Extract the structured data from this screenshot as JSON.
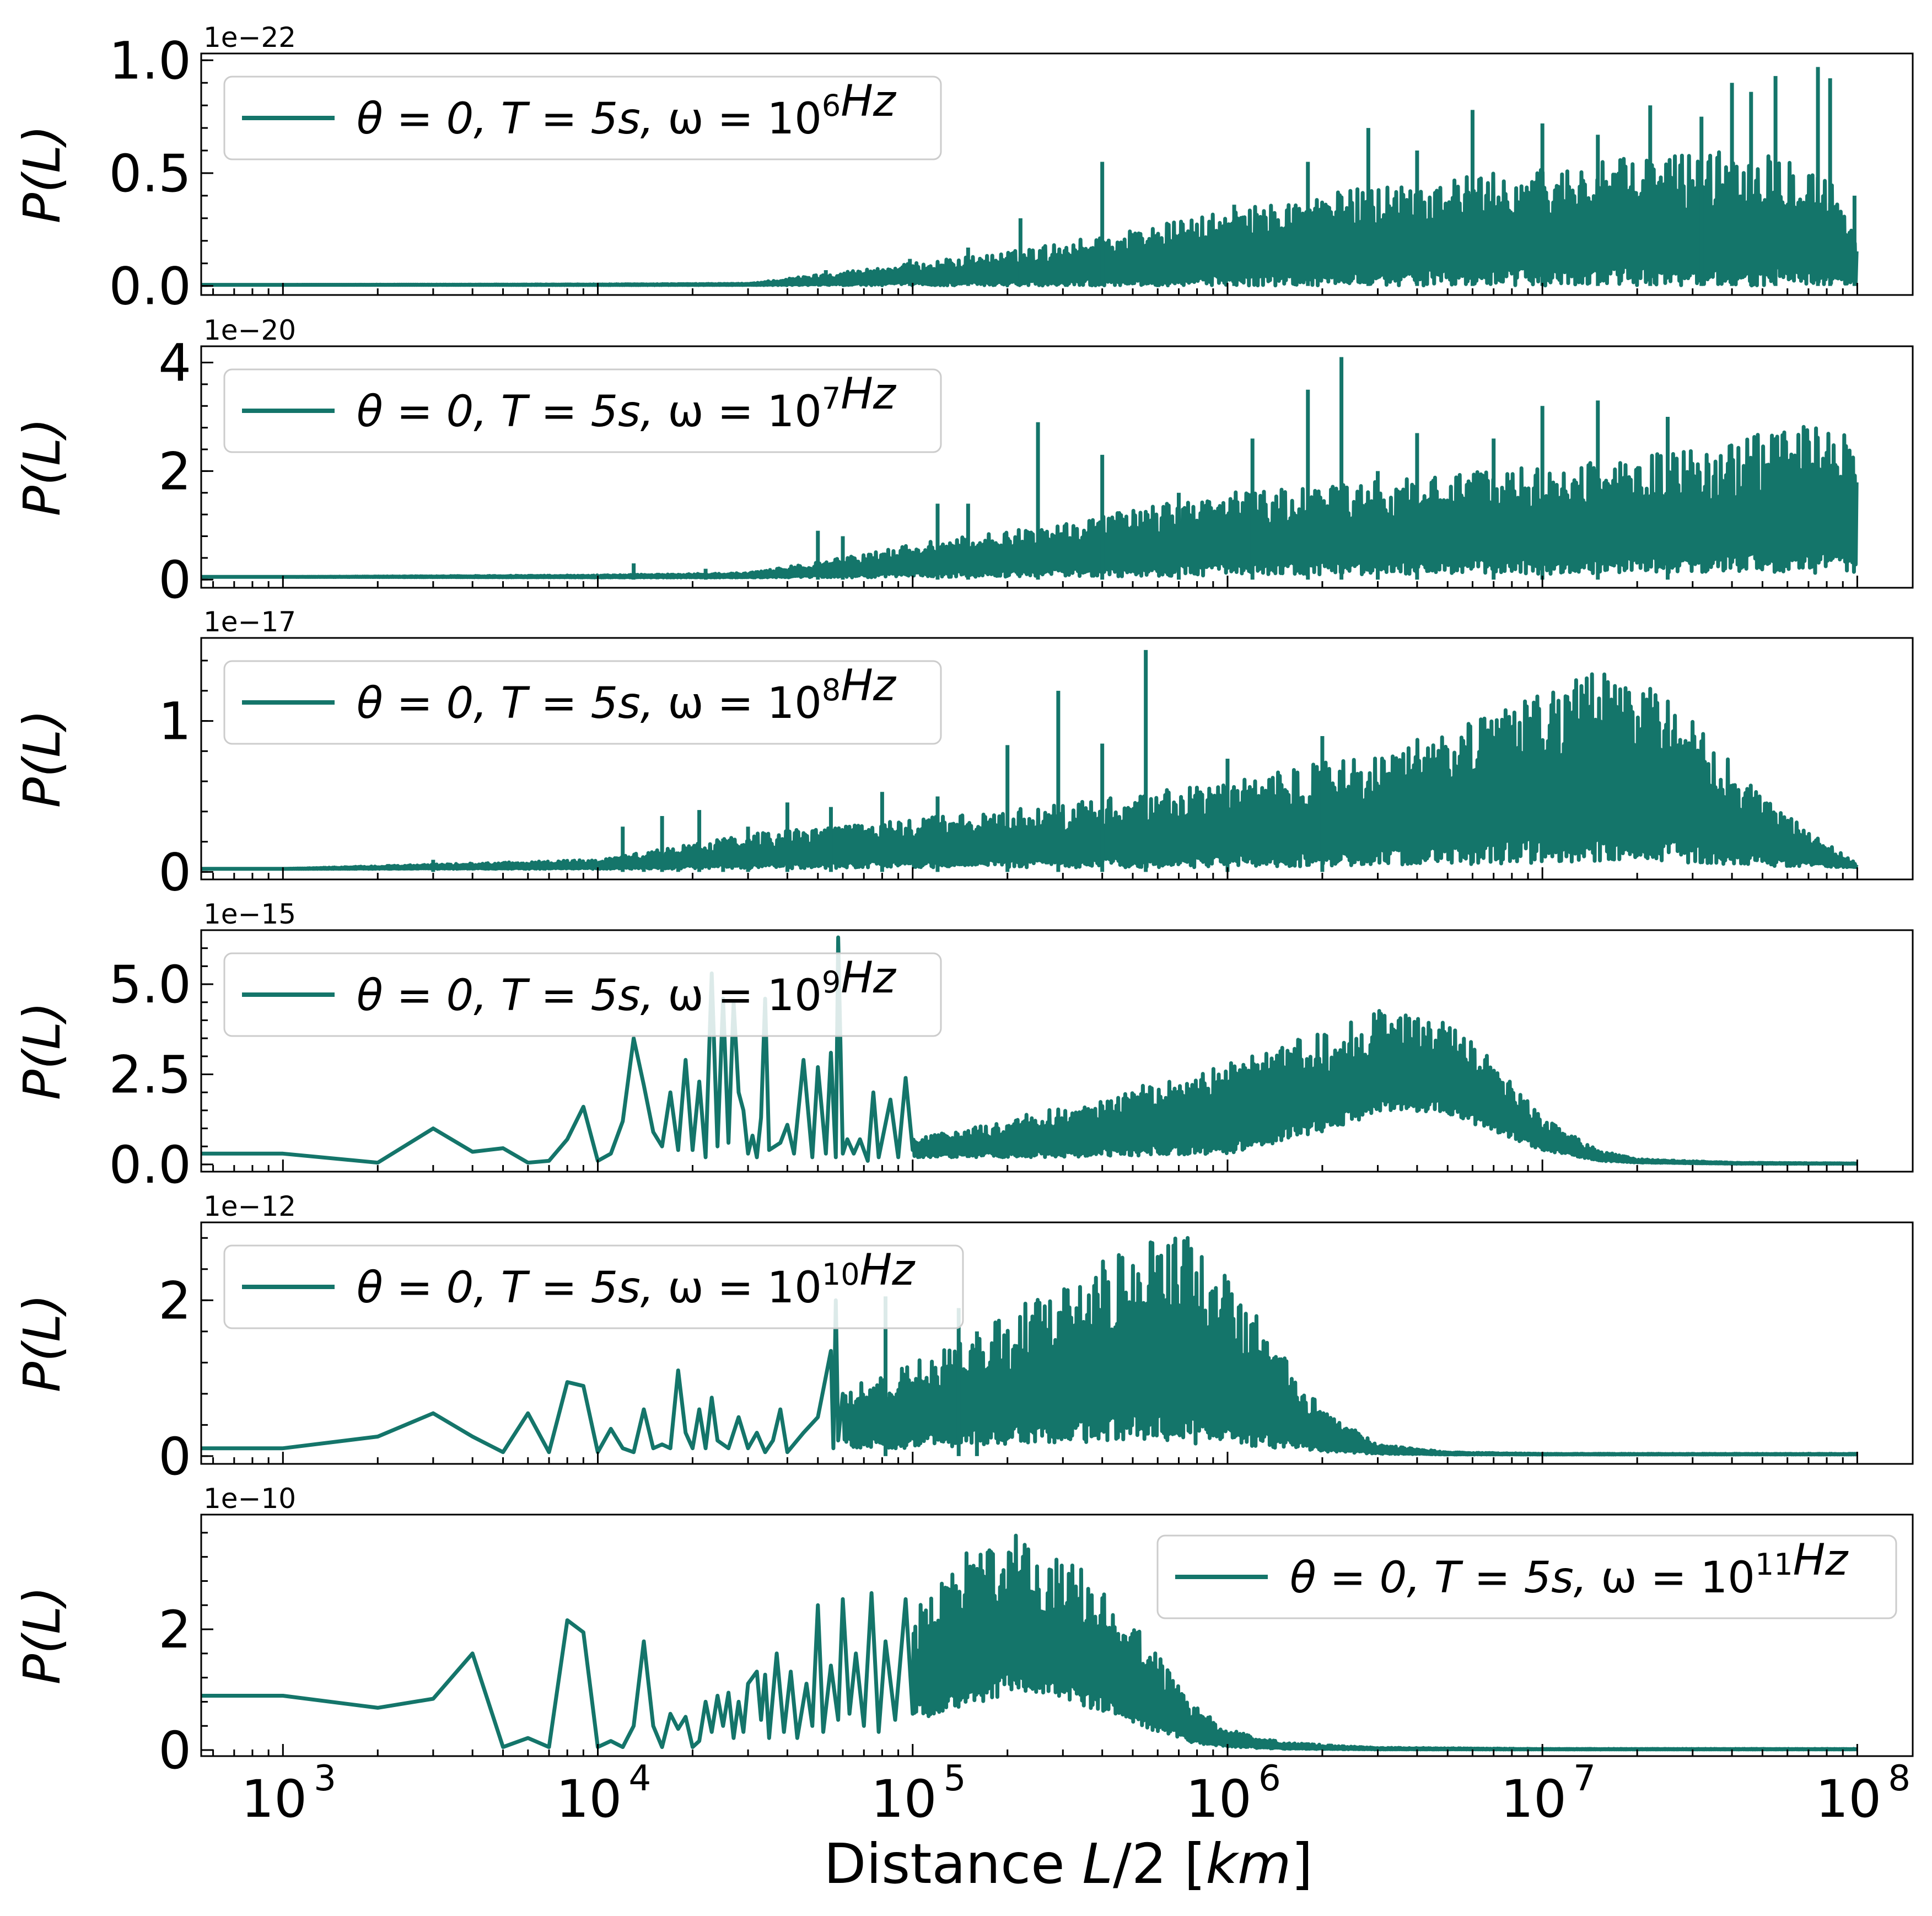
{
  "figure": {
    "color": "#14756a",
    "xlabel_prefix": "Distance ",
    "xlabel_var": "L",
    "xlabel_mid": "/2 [",
    "xlabel_unit": "km",
    "xlabel_suffix": "]"
  },
  "chart_data": [
    {
      "type": "line",
      "ylabel": "P(L)",
      "offset": "1e−22",
      "yticks": [
        0.0,
        0.5,
        1.0
      ],
      "ytick_labels": [
        "0.0",
        "0.5",
        "1.0"
      ],
      "ylim": [
        -0.04,
        1.03
      ],
      "xscale": "log",
      "xlim": [
        550,
        150000000
      ],
      "xticks_exp": [
        "3",
        "4",
        "5",
        "6",
        "7",
        "8"
      ],
      "legend": {
        "theta": "θ = 0, ",
        "T": "T = 5s, ",
        "omega": "ω = 10",
        "exp": "6",
        "unit": "Hz",
        "loc": "upper-left"
      },
      "envelope": {
        "x": [
          1000,
          10000,
          30000,
          50000,
          100000,
          200000,
          500000,
          1000000,
          3000000,
          10000000,
          30000000,
          60000000,
          80000000,
          100000000
        ],
        "upper": [
          0.005,
          0.007,
          0.01,
          0.05,
          0.1,
          0.15,
          0.25,
          0.33,
          0.45,
          0.52,
          0.6,
          0.6,
          0.5,
          0.25
        ],
        "lower": [
          0.005,
          0.004,
          0.004,
          0.003,
          0.003,
          0.002,
          0.002,
          0.002,
          0.002,
          0.002,
          0.002,
          0.002,
          0.002,
          0.002
        ]
      },
      "spikes": [
        [
          53000,
          0.07
        ],
        [
          98000,
          0.12
        ],
        [
          150000,
          0.17
        ],
        [
          220000,
          0.3
        ],
        [
          400000,
          0.55
        ],
        [
          1050000,
          0.36
        ],
        [
          1800000,
          0.55
        ],
        [
          2800000,
          0.7
        ],
        [
          4000000,
          0.6
        ],
        [
          6000000,
          0.78
        ],
        [
          10000000,
          0.72
        ],
        [
          15000000,
          0.67
        ],
        [
          22000000,
          0.8
        ],
        [
          32000000,
          0.75
        ],
        [
          40000000,
          0.9
        ],
        [
          46000000,
          0.86
        ],
        [
          55000000,
          0.93
        ],
        [
          75000000,
          0.97
        ],
        [
          82000000,
          0.92
        ],
        [
          98000000,
          0.4
        ]
      ]
    },
    {
      "type": "line",
      "ylabel": "P(L)",
      "offset": "1e−20",
      "yticks": [
        0,
        2,
        4
      ],
      "ytick_labels": [
        "0",
        "2",
        "4"
      ],
      "ylim": [
        -0.15,
        4.3
      ],
      "xscale": "log",
      "xlim": [
        550,
        150000000
      ],
      "xticks_exp": [
        "3",
        "4",
        "5",
        "6",
        "7",
        "8"
      ],
      "legend": {
        "theta": "θ = 0, ",
        "T": "T = 5s, ",
        "omega": "ω = 10",
        "exp": "7",
        "unit": "Hz",
        "loc": "upper-left"
      },
      "envelope": {
        "x": [
          1000,
          10000,
          30000,
          60000,
          100000,
          200000,
          500000,
          1000000,
          3000000,
          10000000,
          30000000,
          60000000,
          80000000,
          100000000
        ],
        "upper": [
          0.05,
          0.08,
          0.12,
          0.4,
          0.65,
          0.9,
          1.3,
          1.6,
          1.8,
          2.1,
          2.4,
          2.8,
          2.85,
          2.6
        ],
        "lower": [
          0.05,
          0.04,
          0.04,
          0.04,
          0.05,
          0.05,
          0.06,
          0.08,
          0.1,
          0.1,
          0.12,
          0.12,
          0.12,
          0.12
        ]
      },
      "spikes": [
        [
          13000,
          0.3
        ],
        [
          22000,
          0.2
        ],
        [
          50000,
          0.9
        ],
        [
          60000,
          0.8
        ],
        [
          120000,
          1.4
        ],
        [
          150000,
          1.4
        ],
        [
          250000,
          2.9
        ],
        [
          400000,
          2.3
        ],
        [
          700000,
          1.6
        ],
        [
          1200000,
          2.6
        ],
        [
          1800000,
          3.5
        ],
        [
          2300000,
          4.1
        ],
        [
          3000000,
          2.0
        ],
        [
          4000000,
          2.7
        ],
        [
          7000000,
          2.6
        ],
        [
          10000000,
          3.2
        ],
        [
          15000000,
          3.3
        ],
        [
          25000000,
          3.0
        ]
      ]
    },
    {
      "type": "line",
      "ylabel": "P(L)",
      "offset": "1e−17",
      "yticks": [
        0,
        1
      ],
      "ytick_labels": [
        "0",
        "1"
      ],
      "ylim": [
        -0.05,
        1.55
      ],
      "xscale": "log",
      "xlim": [
        550,
        150000000
      ],
      "xticks_exp": [
        "3",
        "4",
        "5",
        "6",
        "7",
        "8"
      ],
      "legend": {
        "theta": "θ = 0, ",
        "T": "T = 5s, ",
        "omega": "ω = 10",
        "exp": "8",
        "unit": "Hz",
        "loc": "upper-left"
      },
      "envelope": {
        "x": [
          1000,
          10000,
          30000,
          100000,
          300000,
          1000000,
          3000000,
          6000000,
          10000000,
          16000000,
          20000000,
          30000000,
          50000000,
          100000000
        ],
        "upper": [
          0.02,
          0.08,
          0.25,
          0.35,
          0.45,
          0.6,
          0.8,
          1.0,
          1.2,
          1.35,
          1.3,
          1.0,
          0.5,
          0.05
        ],
        "lower": [
          0.02,
          0.02,
          0.02,
          0.03,
          0.03,
          0.03,
          0.04,
          0.05,
          0.06,
          0.07,
          0.07,
          0.06,
          0.04,
          0.03
        ]
      },
      "spikes": [
        [
          3000,
          0.08
        ],
        [
          12000,
          0.3
        ],
        [
          14000,
          0.05
        ],
        [
          16000,
          0.37
        ],
        [
          18000,
          0.1
        ],
        [
          21000,
          0.41
        ],
        [
          25000,
          0.22
        ],
        [
          30000,
          0.3
        ],
        [
          40000,
          0.46
        ],
        [
          55000,
          0.43
        ],
        [
          80000,
          0.53
        ],
        [
          120000,
          0.5
        ],
        [
          200000,
          0.84
        ],
        [
          290000,
          1.2
        ],
        [
          400000,
          0.85
        ],
        [
          550000,
          1.47
        ],
        [
          1000000,
          0.75
        ],
        [
          2000000,
          0.9
        ]
      ]
    },
    {
      "type": "line",
      "ylabel": "P(L)",
      "offset": "1e−15",
      "yticks": [
        0.0,
        2.5,
        5.0
      ],
      "ytick_labels": [
        "0.0",
        "2.5",
        "5.0"
      ],
      "ylim": [
        -0.2,
        6.5
      ],
      "xscale": "log",
      "xlim": [
        550,
        150000000
      ],
      "xticks_exp": [
        "3",
        "4",
        "5",
        "6",
        "7",
        "8"
      ],
      "legend": {
        "theta": "θ = 0, ",
        "T": "T = 5s, ",
        "omega": "ω = 10",
        "exp": "9",
        "unit": "Hz",
        "loc": "upper-left"
      },
      "envelope": {
        "x": [
          100000,
          300000,
          1000000,
          2000000,
          3000000,
          3500000,
          5000000,
          7000000,
          10000000,
          15000000,
          20000000,
          40000000,
          100000000
        ],
        "upper": [
          0.7,
          1.6,
          2.8,
          3.7,
          4.3,
          4.3,
          3.9,
          3.0,
          1.3,
          0.4,
          0.15,
          0.05,
          0.03
        ],
        "lower": [
          0.2,
          0.2,
          0.3,
          0.9,
          1.4,
          1.5,
          1.4,
          0.9,
          0.4,
          0.1,
          0.05,
          0.02,
          0.02
        ]
      },
      "trace": [
        [
          550,
          0.3
        ],
        [
          1000,
          0.3
        ],
        [
          2000,
          0.05
        ],
        [
          3000,
          1.0
        ],
        [
          4000,
          0.35
        ],
        [
          5000,
          0.45
        ],
        [
          6000,
          0.05
        ],
        [
          7000,
          0.1
        ],
        [
          8000,
          0.7
        ],
        [
          9000,
          1.6
        ],
        [
          10000,
          0.1
        ],
        [
          11000,
          0.3
        ],
        [
          12000,
          1.2
        ],
        [
          13000,
          3.5
        ],
        [
          14000,
          2.2
        ],
        [
          15000,
          0.9
        ],
        [
          16000,
          0.5
        ],
        [
          17000,
          2.0
        ],
        [
          18000,
          0.4
        ],
        [
          19000,
          2.9
        ],
        [
          20000,
          0.4
        ],
        [
          21000,
          2.3
        ],
        [
          22000,
          0.2
        ],
        [
          23000,
          5.3
        ],
        [
          24000,
          0.5
        ],
        [
          25000,
          4.6
        ],
        [
          26000,
          0.6
        ],
        [
          27000,
          4.5
        ],
        [
          28000,
          2.0
        ],
        [
          29000,
          1.5
        ],
        [
          30000,
          0.3
        ],
        [
          31000,
          0.8
        ],
        [
          32000,
          0.2
        ],
        [
          33000,
          1.3
        ],
        [
          34000,
          4.6
        ],
        [
          35000,
          0.4
        ],
        [
          38000,
          0.6
        ],
        [
          40000,
          1.1
        ],
        [
          42000,
          0.3
        ],
        [
          45000,
          2.9
        ],
        [
          48000,
          0.2
        ],
        [
          50000,
          2.7
        ],
        [
          53000,
          0.3
        ],
        [
          55000,
          3.1
        ],
        [
          57000,
          0.2
        ],
        [
          58000,
          6.3
        ],
        [
          60000,
          0.3
        ],
        [
          62000,
          0.7
        ],
        [
          65000,
          0.3
        ],
        [
          68000,
          0.7
        ],
        [
          72000,
          0.1
        ],
        [
          75000,
          2.0
        ],
        [
          78000,
          0.2
        ],
        [
          85000,
          1.8
        ],
        [
          90000,
          0.2
        ],
        [
          95000,
          2.4
        ],
        [
          100000,
          0.4
        ]
      ]
    },
    {
      "type": "line",
      "ylabel": "P(L)",
      "offset": "1e−12",
      "yticks": [
        0,
        2
      ],
      "ytick_labels": [
        "0",
        "2"
      ],
      "ylim": [
        -0.1,
        3.0
      ],
      "xscale": "log",
      "xlim": [
        550,
        150000000
      ],
      "xticks_exp": [
        "3",
        "4",
        "5",
        "6",
        "7",
        "8"
      ],
      "legend": {
        "theta": "θ = 0, ",
        "T": "T = 5s, ",
        "omega": "ω = 10",
        "exp": "10",
        "unit": "Hz",
        "loc": "upper-left"
      },
      "envelope": {
        "x": [
          60000,
          100000,
          200000,
          300000,
          500000,
          700000,
          1000000,
          1500000,
          2000000,
          3000000,
          5000000,
          10000000,
          100000000
        ],
        "upper": [
          0.9,
          1.2,
          1.8,
          2.3,
          2.7,
          2.9,
          2.4,
          1.3,
          0.6,
          0.15,
          0.05,
          0.03,
          0.03
        ],
        "lower": [
          0.1,
          0.1,
          0.15,
          0.15,
          0.2,
          0.15,
          0.15,
          0.1,
          0.05,
          0.03,
          0.02,
          0.02,
          0.02
        ]
      },
      "trace": [
        [
          550,
          0.1
        ],
        [
          1000,
          0.1
        ],
        [
          2000,
          0.25
        ],
        [
          3000,
          0.55
        ],
        [
          4000,
          0.25
        ],
        [
          5000,
          0.05
        ],
        [
          6000,
          0.55
        ],
        [
          7000,
          0.05
        ],
        [
          8000,
          0.95
        ],
        [
          9000,
          0.9
        ],
        [
          10000,
          0.05
        ],
        [
          11000,
          0.35
        ],
        [
          12000,
          0.1
        ],
        [
          13000,
          0.05
        ],
        [
          14000,
          0.6
        ],
        [
          15000,
          0.1
        ],
        [
          16000,
          0.15
        ],
        [
          17000,
          0.1
        ],
        [
          18000,
          1.1
        ],
        [
          19000,
          0.3
        ],
        [
          20000,
          0.1
        ],
        [
          21000,
          0.6
        ],
        [
          22000,
          0.1
        ],
        [
          23000,
          0.75
        ],
        [
          24000,
          0.2
        ],
        [
          26000,
          0.1
        ],
        [
          28000,
          0.5
        ],
        [
          30000,
          0.1
        ],
        [
          32000,
          0.3
        ],
        [
          34000,
          0.05
        ],
        [
          36000,
          0.2
        ],
        [
          38000,
          0.6
        ],
        [
          40000,
          0.05
        ],
        [
          45000,
          0.3
        ],
        [
          50000,
          0.5
        ],
        [
          55000,
          1.35
        ],
        [
          56000,
          0.1
        ],
        [
          57000,
          2.0
        ],
        [
          58000,
          0.2
        ],
        [
          60000,
          0.8
        ]
      ],
      "spikes": [
        [
          82000,
          2.05
        ],
        [
          140000,
          1.9
        ],
        [
          160000,
          1.6
        ]
      ]
    },
    {
      "type": "line",
      "ylabel": "P(L)",
      "offset": "1e−10",
      "yticks": [
        0,
        2
      ],
      "ytick_labels": [
        "0",
        "2"
      ],
      "ylim": [
        -0.1,
        3.9
      ],
      "xscale": "log",
      "xlim": [
        550,
        150000000
      ],
      "xticks_exp": [
        "3",
        "4",
        "5",
        "6",
        "7",
        "8"
      ],
      "legend": {
        "theta": "θ = 0, ",
        "T": "T = 5s, ",
        "omega": "ω = 10",
        "exp": "11",
        "unit": "Hz",
        "loc": "upper-right"
      },
      "trace": [
        [
          550,
          0.9
        ],
        [
          1000,
          0.9
        ],
        [
          2000,
          0.7
        ],
        [
          3000,
          0.85
        ],
        [
          4000,
          1.6
        ],
        [
          5000,
          0.05
        ],
        [
          6000,
          0.2
        ],
        [
          7000,
          0.05
        ],
        [
          8000,
          2.15
        ],
        [
          9000,
          1.95
        ],
        [
          10000,
          0.05
        ],
        [
          11000,
          0.15
        ],
        [
          12000,
          0.05
        ],
        [
          13000,
          0.4
        ],
        [
          14000,
          1.8
        ],
        [
          15000,
          0.4
        ],
        [
          16000,
          0.05
        ],
        [
          17000,
          0.6
        ],
        [
          18000,
          0.35
        ],
        [
          19000,
          0.55
        ],
        [
          20000,
          0.05
        ],
        [
          21000,
          0.15
        ],
        [
          22000,
          0.8
        ],
        [
          23000,
          0.3
        ],
        [
          24000,
          0.9
        ],
        [
          25000,
          0.4
        ],
        [
          26000,
          0.95
        ],
        [
          27000,
          0.2
        ],
        [
          28000,
          0.8
        ],
        [
          29000,
          0.3
        ],
        [
          30000,
          1.1
        ],
        [
          32000,
          1.3
        ],
        [
          33000,
          0.5
        ],
        [
          34000,
          1.25
        ],
        [
          35000,
          0.2
        ],
        [
          37000,
          1.6
        ],
        [
          39000,
          0.3
        ],
        [
          41000,
          1.3
        ],
        [
          43000,
          0.2
        ],
        [
          46000,
          1.1
        ],
        [
          48000,
          0.4
        ],
        [
          50000,
          2.4
        ],
        [
          52000,
          0.3
        ],
        [
          55000,
          1.4
        ],
        [
          58000,
          0.5
        ],
        [
          60000,
          2.5
        ],
        [
          63000,
          0.6
        ],
        [
          66000,
          1.6
        ],
        [
          70000,
          0.4
        ],
        [
          74000,
          2.6
        ],
        [
          78000,
          0.3
        ],
        [
          82000,
          1.8
        ],
        [
          88000,
          0.5
        ],
        [
          95000,
          2.5
        ],
        [
          100000,
          0.6
        ]
      ],
      "envelope": {
        "x": [
          100000,
          150000,
          200000,
          300000,
          400000,
          600000,
          800000,
          1000000,
          1500000,
          3000000,
          10000000,
          100000000
        ],
        "upper": [
          2.3,
          3.3,
          3.6,
          3.3,
          2.7,
          1.6,
          0.7,
          0.35,
          0.12,
          0.04,
          0.02,
          0.02
        ],
        "lower": [
          0.5,
          0.7,
          0.9,
          0.8,
          0.6,
          0.3,
          0.1,
          0.05,
          0.02,
          0.01,
          0.01,
          0.01
        ]
      }
    }
  ]
}
